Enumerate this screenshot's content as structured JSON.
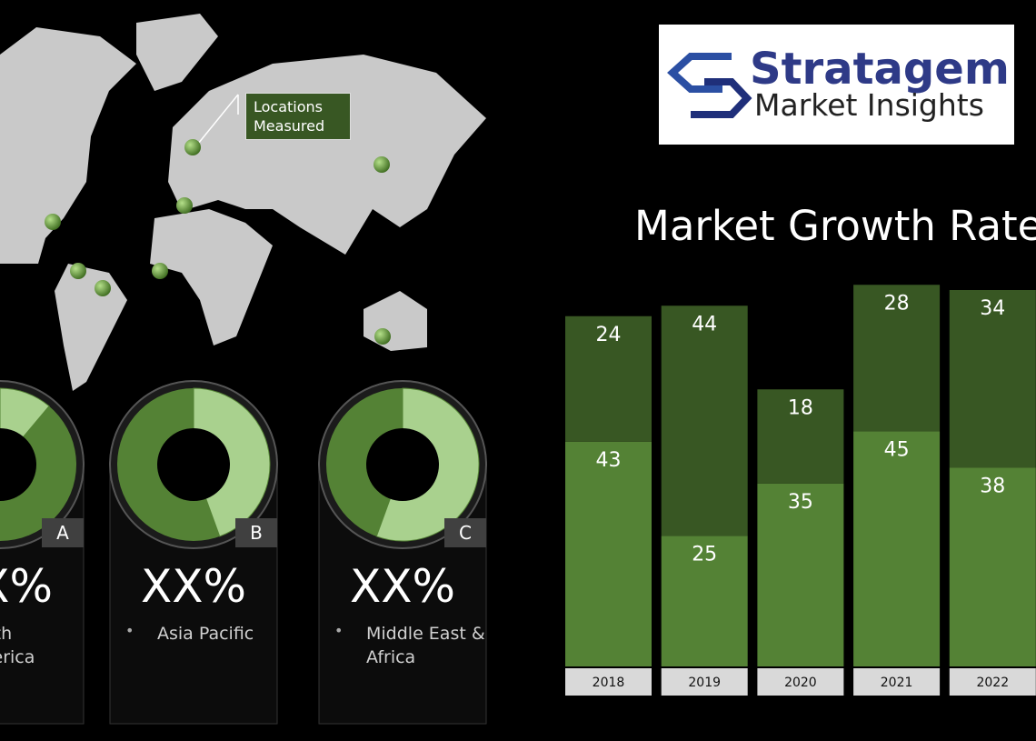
{
  "logo": {
    "name": "Stratagem",
    "tagline": "Market Insights"
  },
  "map": {
    "callout": "Locations Measured"
  },
  "regions": [
    {
      "letter": "A",
      "value": "XX%",
      "name": "North America"
    },
    {
      "letter": "B",
      "value": "XX%",
      "name": "Asia Pacific"
    },
    {
      "letter": "C",
      "value": "XX%",
      "name": "Middle East & Africa"
    }
  ],
  "chart_data": {
    "type": "bar",
    "stacked": true,
    "title": "Market Growth Rate",
    "categories": [
      "2018",
      "2019",
      "2020",
      "2021",
      "2022"
    ],
    "series": [
      {
        "color": "#548235",
        "values": [
          43,
          25,
          35,
          45,
          38
        ]
      },
      {
        "color": "#385723",
        "values": [
          24,
          44,
          18,
          28,
          34
        ]
      }
    ]
  }
}
